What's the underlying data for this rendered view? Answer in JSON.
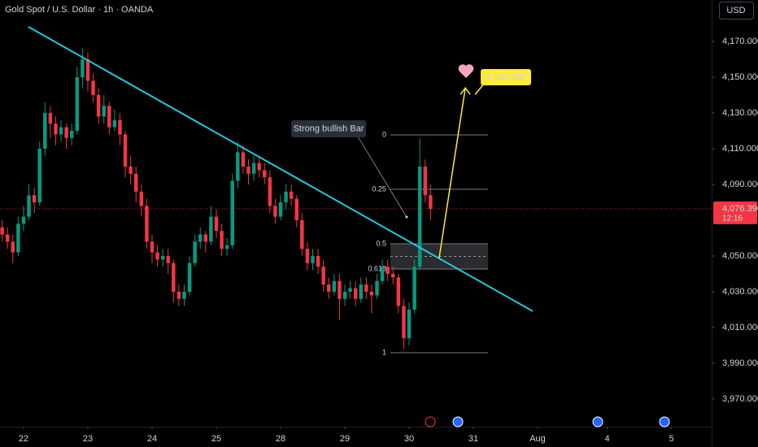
{
  "chart_data": {
    "type": "candlestick",
    "title": "Gold Spot / U.S. Dollar · 1h · OANDA",
    "currency": "USD",
    "up_color": "#089981",
    "down_color": "#f23645",
    "x": [
      -8,
      -6,
      -4,
      -2,
      0,
      2,
      4,
      6,
      8,
      10,
      12,
      14,
      16,
      18,
      20,
      22,
      24,
      26,
      28,
      30,
      32,
      34,
      36,
      38,
      40,
      42,
      44,
      46,
      48,
      50,
      52,
      54,
      56,
      58,
      60,
      62,
      64,
      66,
      68,
      70,
      72,
      74,
      76,
      78,
      80,
      82,
      84,
      86,
      88,
      90,
      92,
      94,
      96,
      98,
      100,
      102,
      104,
      106,
      108,
      110,
      112,
      114,
      116,
      118,
      120,
      122,
      124,
      126,
      128,
      130,
      132,
      134,
      136,
      138,
      140,
      142,
      144,
      146,
      148,
      150,
      152
    ],
    "open": [
      4066,
      4062,
      4058,
      4052,
      4068,
      4072,
      4084,
      4080,
      4110,
      4130,
      4124,
      4118,
      4122,
      4116,
      4120,
      4150,
      4160,
      4148,
      4140,
      4128,
      4134,
      4122,
      4126,
      4118,
      4100,
      4096,
      4086,
      4078,
      4058,
      4052,
      4048,
      4050,
      4046,
      4030,
      4026,
      4030,
      4046,
      4058,
      4062,
      4058,
      4072,
      4064,
      4054,
      4056,
      4092,
      4108,
      4100,
      4096,
      4102,
      4098,
      4094,
      4078,
      4072,
      4080,
      4086,
      4082,
      4070,
      4054,
      4046,
      4050,
      4044,
      4034,
      4030,
      4036,
      4026,
      4030,
      4032,
      4026,
      4034,
      4030,
      4028,
      4036,
      4044,
      4040,
      4038,
      4022,
      4004,
      4020,
      4044,
      4100,
      4084
    ],
    "high": [
      4070,
      4066,
      4062,
      4072,
      4078,
      4090,
      4088,
      4114,
      4136,
      4134,
      4128,
      4126,
      4124,
      4124,
      4156,
      4166,
      4164,
      4152,
      4144,
      4140,
      4136,
      4132,
      4130,
      4120,
      4106,
      4100,
      4090,
      4082,
      4062,
      4056,
      4054,
      4054,
      4048,
      4034,
      4034,
      4050,
      4062,
      4066,
      4064,
      4078,
      4076,
      4068,
      4060,
      4096,
      4114,
      4112,
      4104,
      4106,
      4106,
      4102,
      4098,
      4082,
      4084,
      4090,
      4090,
      4084,
      4074,
      4058,
      4054,
      4054,
      4048,
      4038,
      4040,
      4040,
      4034,
      4036,
      4036,
      4038,
      4038,
      4034,
      4040,
      4048,
      4048,
      4044,
      4040,
      4026,
      4024,
      4048,
      4116,
      4104,
      4090
    ],
    "low": [
      4058,
      4054,
      4046,
      4050,
      4064,
      4070,
      4074,
      4078,
      4106,
      4116,
      4112,
      4114,
      4110,
      4112,
      4118,
      4144,
      4142,
      4136,
      4124,
      4124,
      4118,
      4120,
      4112,
      4094,
      4090,
      4080,
      4072,
      4054,
      4046,
      4044,
      4044,
      4040,
      4024,
      4022,
      4022,
      4028,
      4044,
      4054,
      4052,
      4056,
      4060,
      4050,
      4050,
      4054,
      4088,
      4096,
      4090,
      4092,
      4094,
      4090,
      4074,
      4068,
      4070,
      4076,
      4078,
      4066,
      4050,
      4042,
      4042,
      4040,
      4030,
      4026,
      4028,
      4014,
      4022,
      4026,
      4022,
      4024,
      4026,
      4018,
      4026,
      4034,
      4036,
      4034,
      4018,
      3998,
      4000,
      4018,
      4042,
      4080,
      4070
    ],
    "close": [
      4062,
      4058,
      4052,
      4068,
      4072,
      4084,
      4080,
      4110,
      4130,
      4124,
      4118,
      4122,
      4116,
      4120,
      4150,
      4160,
      4148,
      4140,
      4128,
      4134,
      4122,
      4126,
      4118,
      4100,
      4096,
      4086,
      4078,
      4058,
      4052,
      4048,
      4050,
      4046,
      4030,
      4026,
      4030,
      4046,
      4058,
      4062,
      4058,
      4072,
      4064,
      4054,
      4056,
      4092,
      4108,
      4100,
      4096,
      4102,
      4098,
      4094,
      4078,
      4072,
      4080,
      4086,
      4082,
      4070,
      4054,
      4046,
      4050,
      4044,
      4034,
      4030,
      4036,
      4026,
      4030,
      4032,
      4026,
      4034,
      4030,
      4028,
      4036,
      4044,
      4040,
      4038,
      4022,
      4004,
      4020,
      4044,
      4100,
      4084,
      4076.39
    ],
    "xlim": [
      -8.8,
      257
    ],
    "ylim": [
      3954.5,
      4193.2
    ],
    "xticks": [
      {
        "value": 0,
        "label": "22"
      },
      {
        "value": 24,
        "label": "23"
      },
      {
        "value": 48,
        "label": "24"
      },
      {
        "value": 72,
        "label": "25"
      },
      {
        "value": 96,
        "label": "28"
      },
      {
        "value": 120,
        "label": "29"
      },
      {
        "value": 144,
        "label": "30"
      },
      {
        "value": 168,
        "label": "31"
      },
      {
        "value": 192,
        "label": "Aug"
      },
      {
        "value": 218,
        "label": "4"
      },
      {
        "value": 242,
        "label": "5"
      }
    ],
    "yticks": [
      {
        "value": 4170,
        "label": "4,170.000"
      },
      {
        "value": 4150,
        "label": "4,150.000"
      },
      {
        "value": 4130,
        "label": "4,130.000"
      },
      {
        "value": 4110,
        "label": "4,110.000"
      },
      {
        "value": 4090,
        "label": "4,090.000"
      },
      {
        "value": 4050,
        "label": "4,050.000"
      },
      {
        "value": 4030,
        "label": "4,030.000"
      },
      {
        "value": 4010,
        "label": "4,010.000"
      },
      {
        "value": 3990,
        "label": "3,990.000"
      },
      {
        "value": 3970,
        "label": "3,970.000"
      }
    ],
    "grid": false,
    "last_price": {
      "value": 4076.39,
      "label": "4,076.390"
    },
    "countdown": "12:16",
    "trendline": {
      "color": "#26c6da",
      "x": [
        1.8,
        190.2
      ],
      "y": [
        4178.2,
        4019.1
      ]
    },
    "fib_x": [
      137,
      173.5
    ],
    "fib_levels": [
      {
        "label": "0",
        "price": 4117.7
      },
      {
        "label": "0.25",
        "price": 4087.3
      },
      {
        "label": "0.5",
        "price": 4056.8
      },
      {
        "label": "0.618",
        "price": 4042.7
      },
      {
        "label": "1",
        "price": 3995.9
      }
    ],
    "annotation": "Strong bullish Bar",
    "arrow": {
      "color": "#ffeb3b",
      "x": [
        155.2,
        165
      ],
      "y": [
        4048.6,
        4144
      ]
    },
    "target": {
      "value": 4140,
      "label": "4,140.000"
    }
  }
}
